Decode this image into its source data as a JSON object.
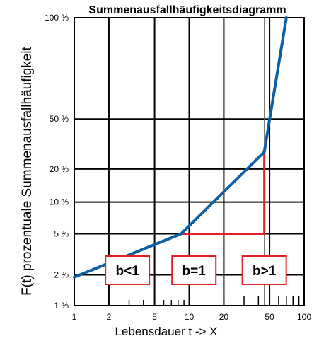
{
  "chart_data": {
    "type": "line",
    "title": "Summenausfallhäufigkeitsdiagramm",
    "xlabel": "Lebensdauer t -> X",
    "ylabel": "F(t) prozentuale Summenausfallhäufigkeit",
    "x_scale": "log",
    "y_scale": "weibull",
    "xlim": [
      1,
      100
    ],
    "ylim": [
      1,
      100
    ],
    "x_tick_labels": [
      "1",
      "2",
      "5",
      "10",
      "20",
      "50",
      "100"
    ],
    "x_tick_values": [
      1,
      2,
      5,
      10,
      20,
      50,
      100
    ],
    "y_tick_labels": [
      "1 %",
      "2 %",
      "5 %",
      "10 %",
      "20 %",
      "50 %",
      "100 %"
    ],
    "y_tick_values": [
      1,
      2,
      5,
      10,
      20,
      50,
      100
    ],
    "grid": true,
    "series": [
      {
        "color": "#0b5fa5",
        "x": [
          1.0,
          8.5,
          40,
          45,
          70
        ],
        "y": [
          1.9,
          5.0,
          25,
          28,
          100
        ]
      }
    ],
    "reference_lines": {
      "color": "#e31e24",
      "horizontal": {
        "x_from": 8.5,
        "x_to": 45,
        "y": 5.0
      },
      "vertical": {
        "x": 45,
        "y_from": 5.0,
        "y_to": 28
      }
    },
    "highlight_x": 45,
    "annotations": [
      {
        "text": "b<1",
        "x_center": 2.9
      },
      {
        "text": "b=1",
        "x_center": 11.0
      },
      {
        "text": "b>1",
        "x_center": 45.0
      }
    ],
    "annotation_color": "#e31e24"
  }
}
